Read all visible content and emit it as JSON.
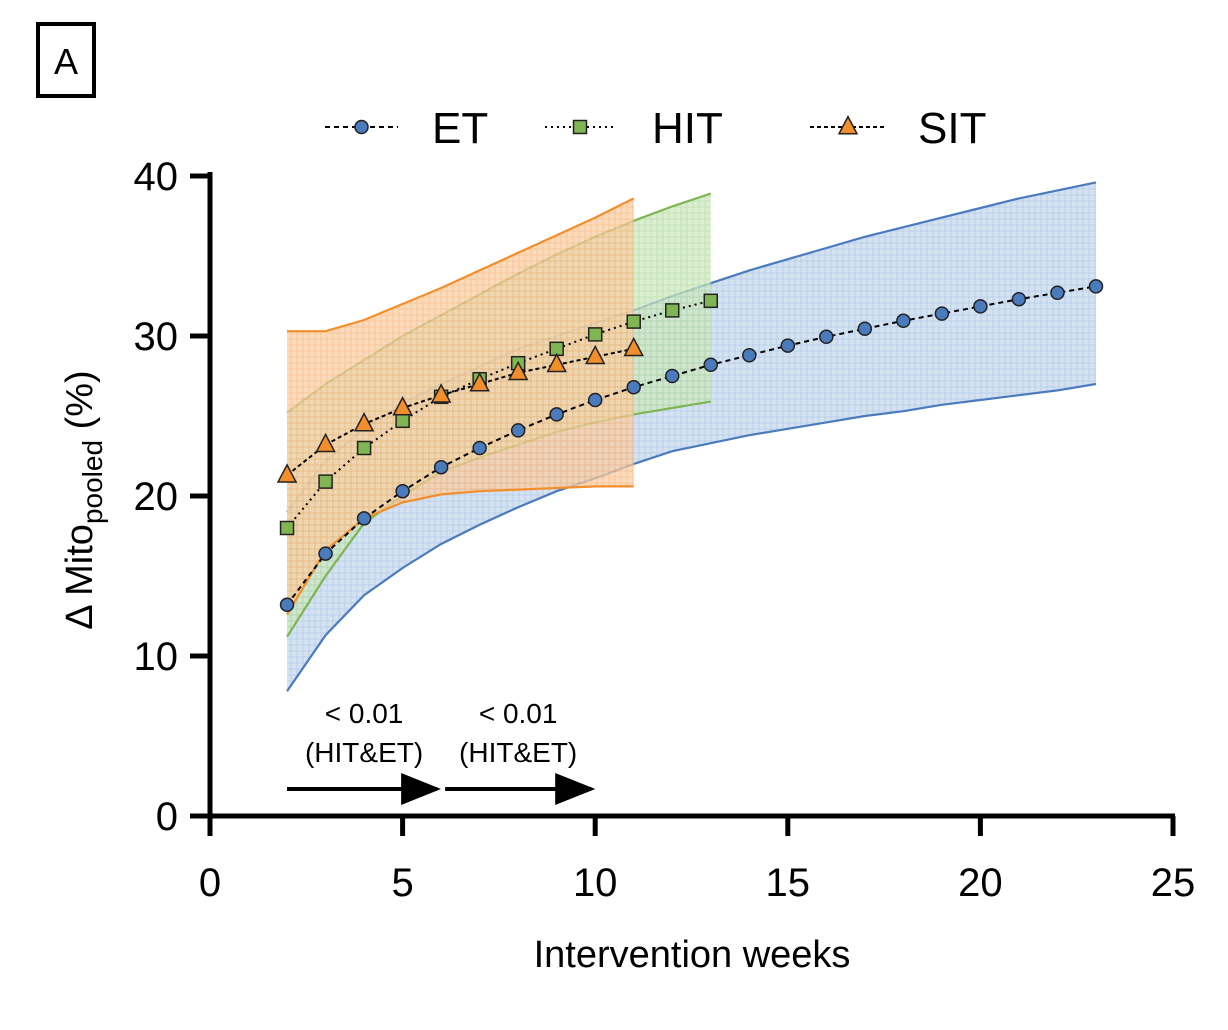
{
  "panel_label": "A",
  "chart_data": {
    "type": "line",
    "xlabel": "Intervention weeks",
    "ylabel": {
      "prefix": "Δ Mito",
      "subscript": "pooled",
      "suffix": " (%)"
    },
    "xlim": [
      0,
      25
    ],
    "ylim": [
      0,
      40
    ],
    "xticks": [
      0,
      5,
      10,
      15,
      20,
      25
    ],
    "yticks": [
      0,
      10,
      20,
      30,
      40
    ],
    "grid": false,
    "legend_position": "top",
    "series": [
      {
        "name": "ET",
        "marker": "circle",
        "color": "#4a7bbd",
        "band_color": "#a9c4e2",
        "x": [
          2,
          3,
          4,
          5,
          6,
          7,
          8,
          9,
          10,
          11,
          12,
          13,
          14,
          15,
          16,
          17,
          18,
          19,
          20,
          21,
          22,
          23
        ],
        "y": [
          13.2,
          16.4,
          18.6,
          20.3,
          21.8,
          23.0,
          24.1,
          25.1,
          26.0,
          26.8,
          27.5,
          28.2,
          28.8,
          29.4,
          29.95,
          30.45,
          30.95,
          31.4,
          31.85,
          32.3,
          32.7,
          33.1
        ],
        "lower": [
          7.8,
          11.3,
          13.8,
          15.5,
          17.0,
          18.2,
          19.3,
          20.3,
          21.1,
          22.0,
          22.8,
          23.3,
          23.8,
          24.2,
          24.6,
          25.0,
          25.3,
          25.7,
          26.0,
          26.3,
          26.6,
          27.0
        ],
        "upper": [
          19.0,
          22.2,
          24.2,
          25.8,
          27.0,
          28.1,
          29.2,
          30.0,
          30.8,
          31.6,
          32.5,
          33.3,
          34.1,
          34.8,
          35.5,
          36.2,
          36.8,
          37.4,
          38.0,
          38.6,
          39.1,
          39.6
        ]
      },
      {
        "name": "HIT",
        "marker": "square",
        "color": "#7fb552",
        "band_color": "#b7dca5",
        "x": [
          2,
          3,
          4,
          5,
          6,
          7,
          8,
          9,
          10,
          11,
          12,
          13
        ],
        "y": [
          18.0,
          20.9,
          23.0,
          24.7,
          26.2,
          27.3,
          28.3,
          29.2,
          30.1,
          30.9,
          31.6,
          32.2
        ],
        "lower": [
          11.2,
          15.0,
          18.3,
          20.0,
          21.5,
          22.4,
          23.2,
          24.0,
          24.6,
          25.1,
          25.5,
          25.9
        ],
        "upper": [
          25.2,
          27.0,
          28.5,
          30.0,
          31.3,
          32.6,
          33.9,
          35.1,
          36.2,
          37.2,
          38.1,
          38.9
        ]
      },
      {
        "name": "SIT",
        "marker": "triangle",
        "color": "#f28e2b",
        "band_color": "#f9c08a",
        "x": [
          2,
          3,
          4,
          5,
          6,
          7,
          8,
          9,
          10,
          11
        ],
        "y": [
          21.3,
          23.2,
          24.5,
          25.5,
          26.3,
          27.0,
          27.7,
          28.2,
          28.7,
          29.2
        ],
        "lower": [
          12.6,
          16.6,
          18.6,
          19.6,
          20.1,
          20.3,
          20.4,
          20.5,
          20.6,
          20.6
        ],
        "upper": [
          30.3,
          30.3,
          31.0,
          32.0,
          33.0,
          34.1,
          35.2,
          36.3,
          37.4,
          38.6
        ]
      }
    ],
    "annotations": [
      {
        "line1": "< 0.01",
        "line2": "(HIT&ET)",
        "x_start": 2,
        "x_end": 6
      },
      {
        "line1": "< 0.01",
        "line2": "(HIT&ET)",
        "x_start": 6,
        "x_end": 10
      }
    ]
  }
}
